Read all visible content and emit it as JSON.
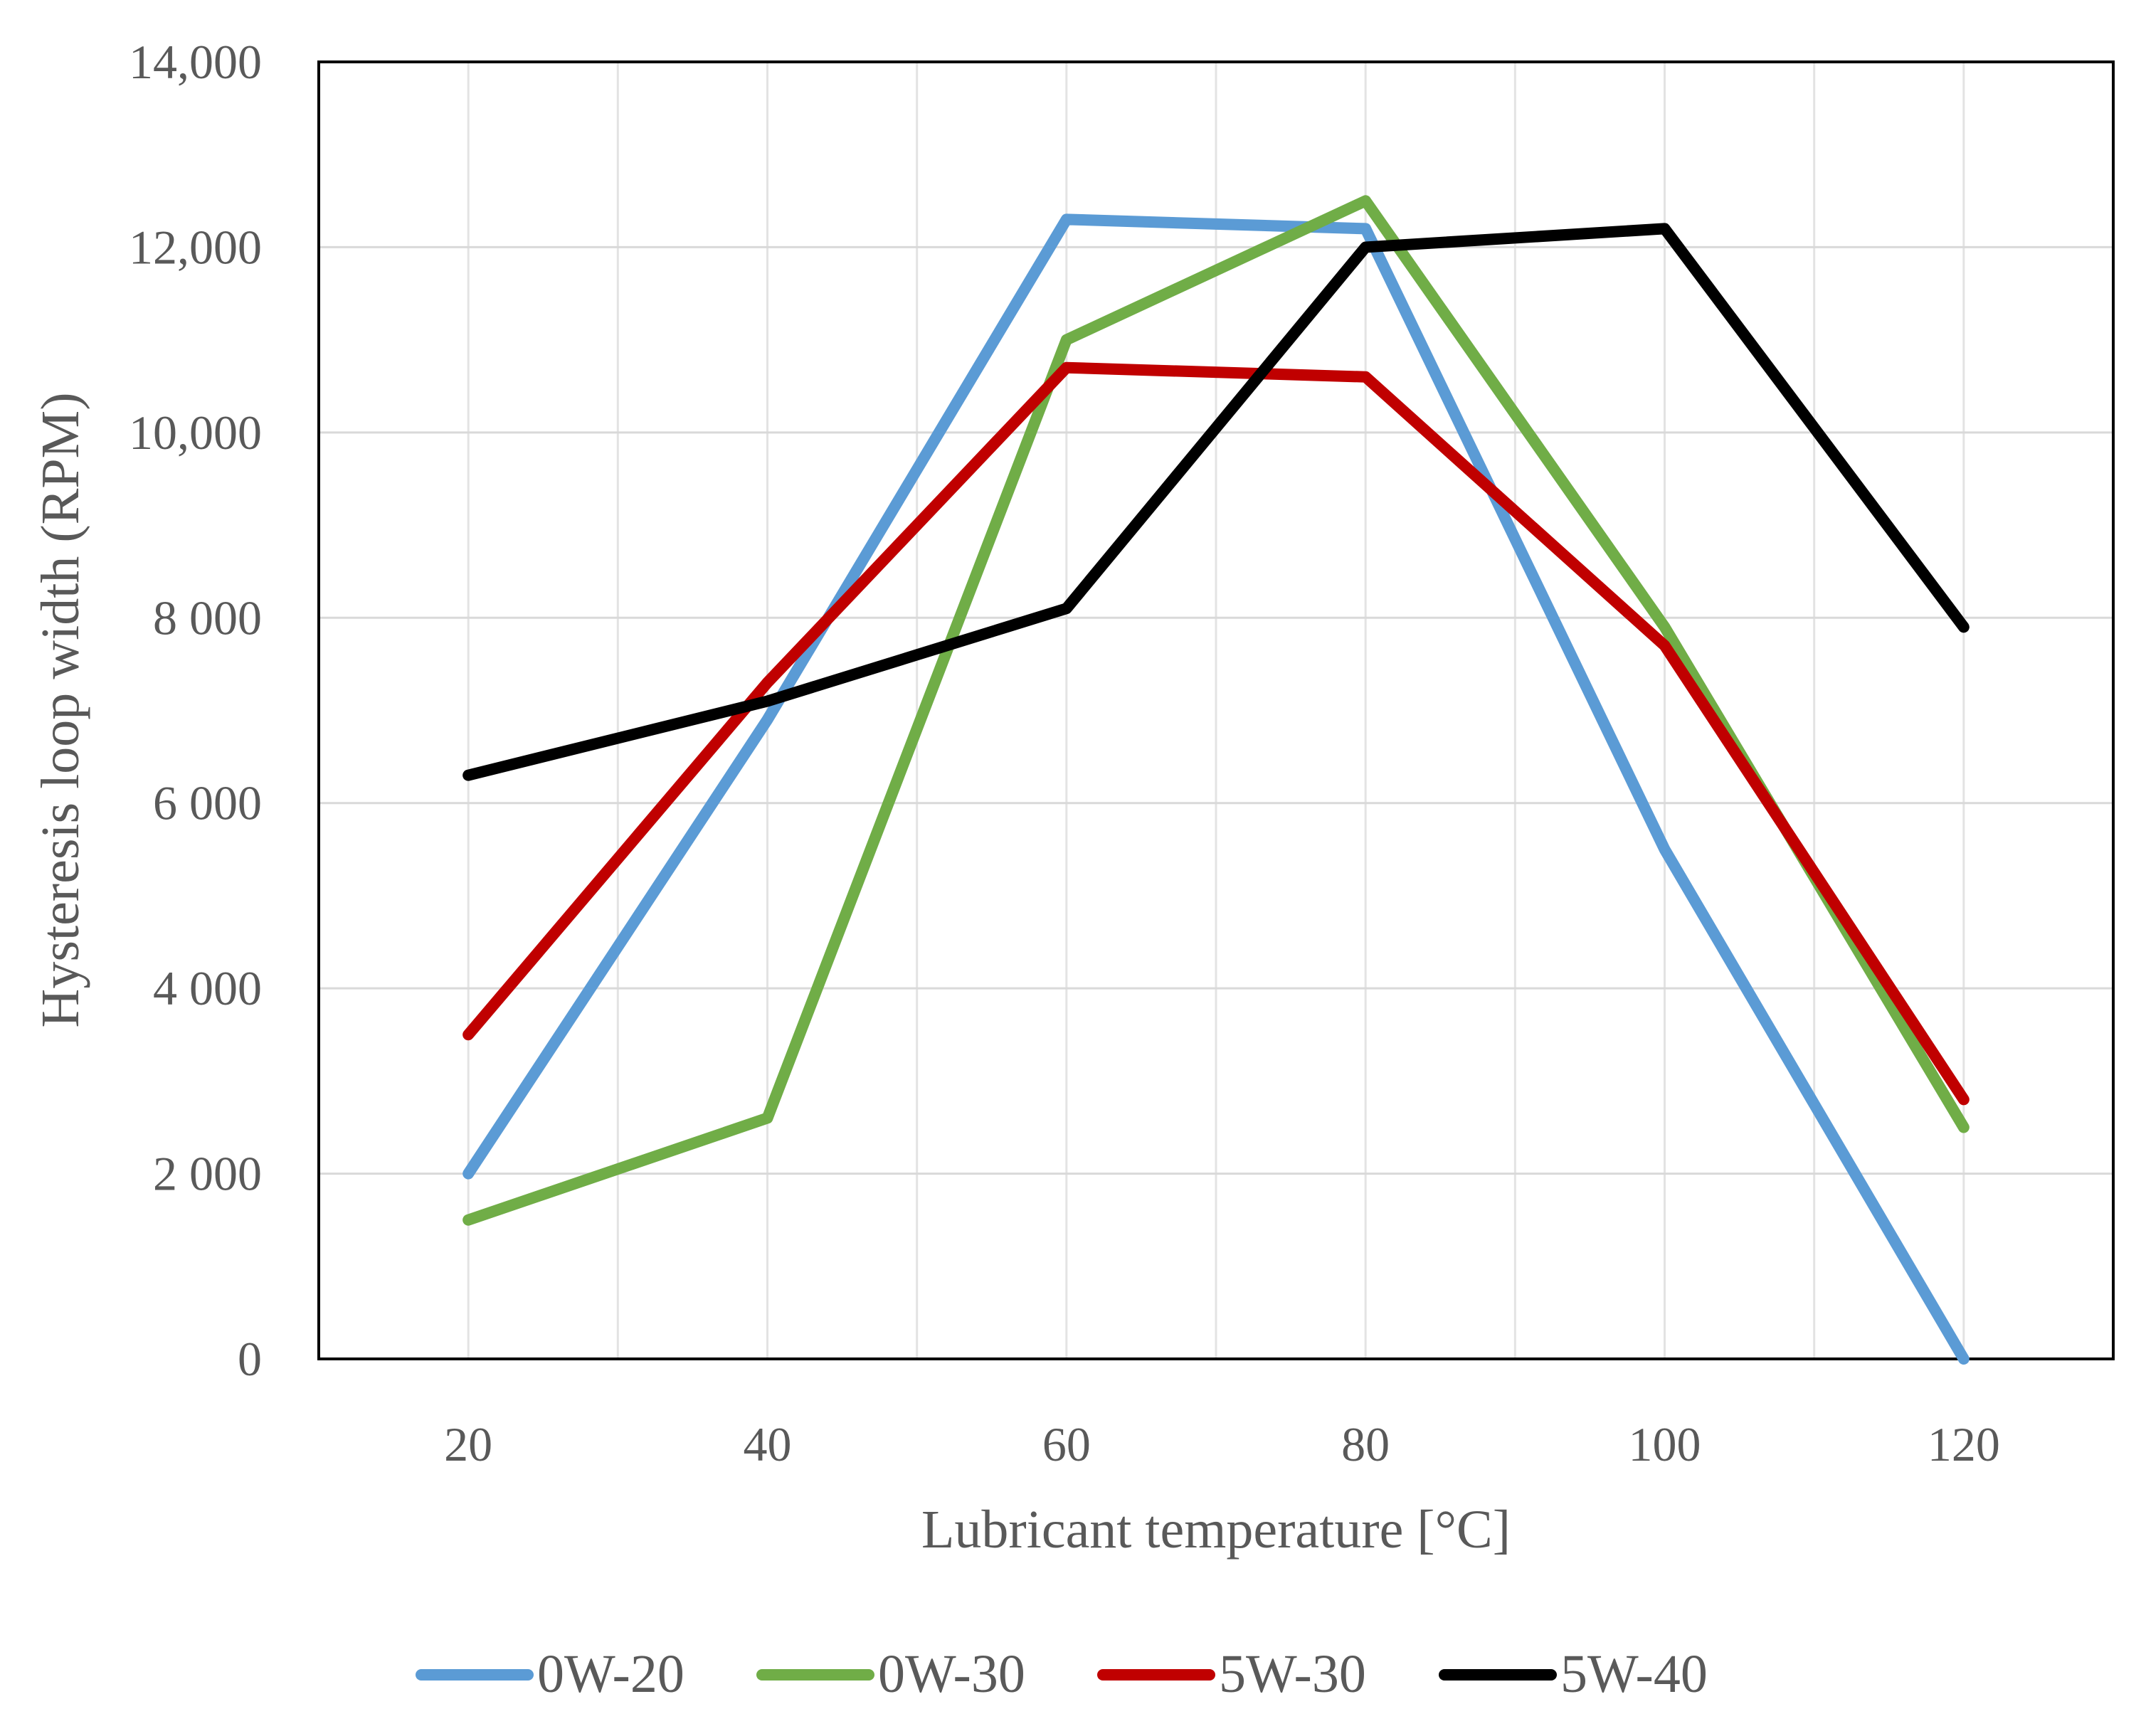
{
  "chart_data": {
    "type": "line",
    "xlabel": "Lubricant temperature [°C]",
    "ylabel": "Hysteresis loop width (RPM)",
    "x": [
      20,
      40,
      60,
      80,
      100,
      120
    ],
    "x_tick_labels": [
      "20",
      "40",
      "60",
      "80",
      "100",
      "120"
    ],
    "xlim": [
      10,
      130
    ],
    "ylim": [
      0,
      14000
    ],
    "y_ticks": [
      0,
      2000,
      4000,
      6000,
      8000,
      10000,
      12000,
      14000
    ],
    "y_tick_labels": [
      "0",
      "2 000",
      "4 000",
      "6 000",
      "8 000",
      "10,000",
      "12,000",
      "14,000"
    ],
    "grid": "on",
    "legend_position": "bottom",
    "series": [
      {
        "name": "0W-20",
        "color": "#5B9BD5",
        "values": [
          2000,
          6900,
          12300,
          12200,
          5500,
          0
        ]
      },
      {
        "name": "0W-30",
        "color": "#70AD47",
        "values": [
          1500,
          2600,
          11000,
          12500,
          7900,
          2500
        ]
      },
      {
        "name": "5W-30",
        "color": "#C00000",
        "values": [
          3500,
          7300,
          10700,
          10600,
          7700,
          2800
        ]
      },
      {
        "name": "5W-40",
        "color": "#000000",
        "values": [
          6300,
          7100,
          8100,
          12000,
          12200,
          7900
        ]
      }
    ]
  }
}
